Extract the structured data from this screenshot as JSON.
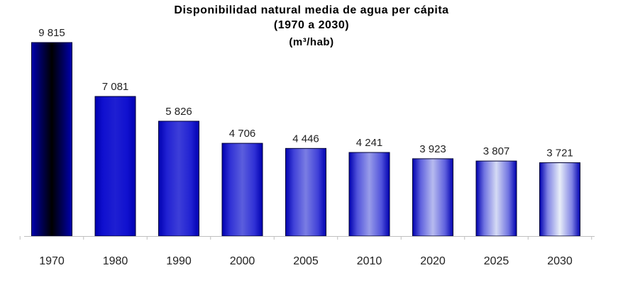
{
  "chart_data": {
    "type": "bar",
    "title": "Disponibilidad natural media de agua per cápita",
    "subtitle": "(1970 a 2030)",
    "unit": "(m³/hab)",
    "categories": [
      "1970",
      "1980",
      "1990",
      "2000",
      "2005",
      "2010",
      "2020",
      "2025",
      "2030"
    ],
    "values": [
      9815,
      7081,
      5826,
      4706,
      4446,
      4241,
      3923,
      3807,
      3721
    ],
    "value_labels": [
      "9 815",
      "7 081",
      "5 826",
      "4 706",
      "4 446",
      "4 241",
      "3 923",
      "3 807",
      "3 721"
    ],
    "xlabel": "",
    "ylabel": "",
    "ylim": [
      0,
      9815
    ],
    "grid": false,
    "legend": "none",
    "bar_color_dark": "#0000cc",
    "bar_color_light": "#e8eef8",
    "bar_highlight": "#000000"
  }
}
